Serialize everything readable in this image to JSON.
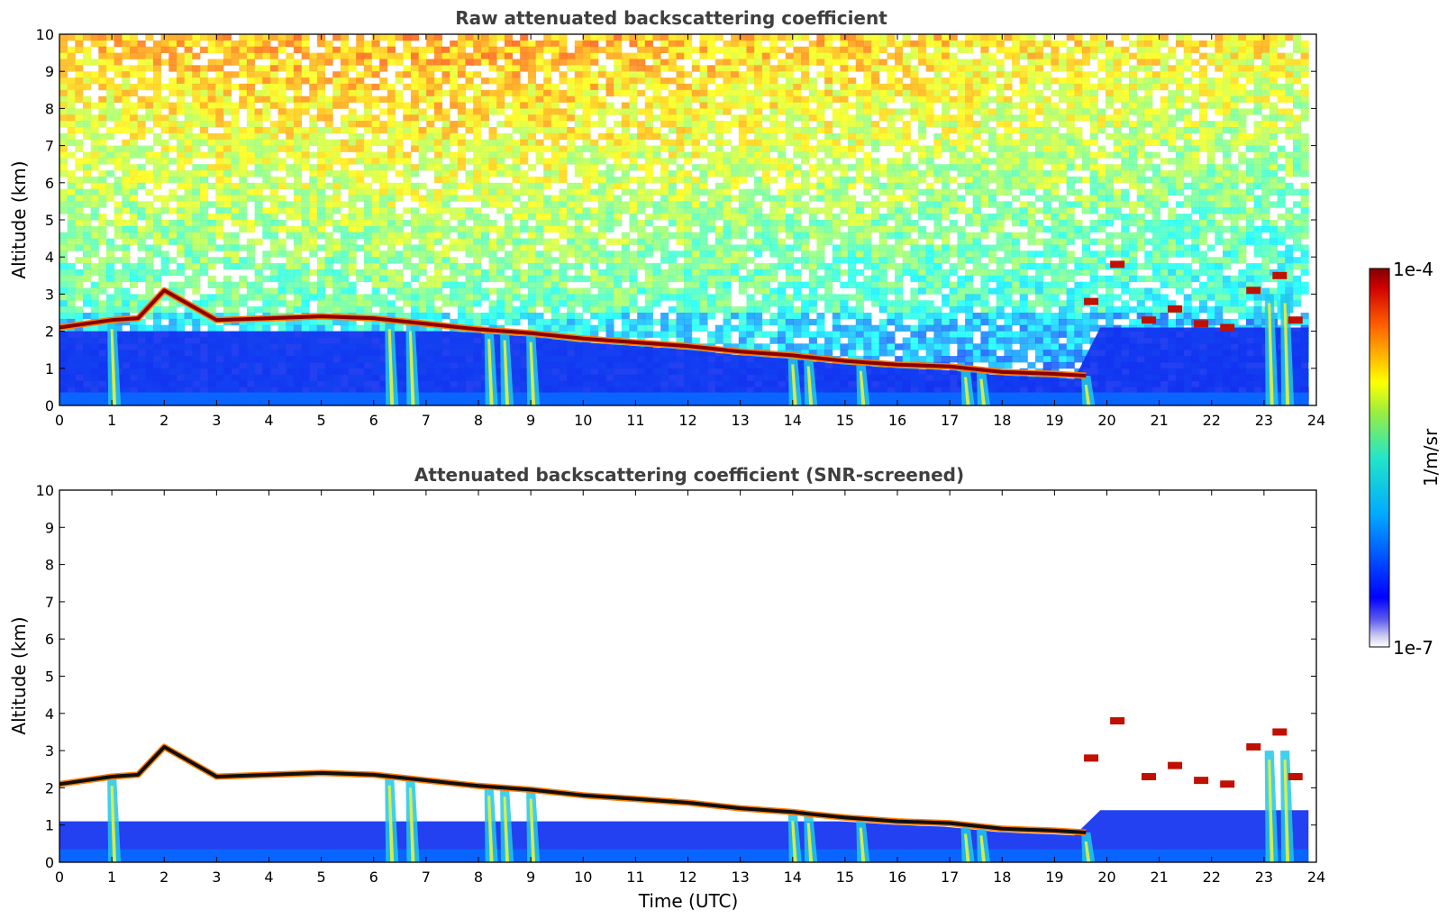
{
  "colorbar": {
    "label": "1/m/sr",
    "max_label": "1e-4",
    "min_label": "1e-7",
    "scale": "log",
    "range": [
      1e-07,
      0.0001
    ],
    "colormap": "jet"
  },
  "chart_data": [
    {
      "type": "heatmap",
      "title": "Raw attenuated backscattering coefficient",
      "xlabel": "",
      "ylabel": "Altitude (km)",
      "xlim": [
        0,
        24
      ],
      "ylim": [
        0,
        10
      ],
      "xticks": [
        "0",
        "1",
        "2",
        "3",
        "4",
        "5",
        "6",
        "7",
        "8",
        "9",
        "10",
        "11",
        "12",
        "13",
        "14",
        "15",
        "16",
        "17",
        "18",
        "19",
        "20",
        "21",
        "22",
        "23",
        "24"
      ],
      "yticks": [
        "0",
        "1",
        "2",
        "3",
        "4",
        "5",
        "6",
        "7",
        "8",
        "9",
        "10"
      ],
      "screened": false,
      "cloud_layer": {
        "x": [
          0,
          1,
          1.5,
          2,
          3,
          4,
          5,
          6,
          7,
          8,
          9,
          10,
          11,
          12,
          13,
          14,
          14.3,
          15,
          16,
          17,
          18,
          19,
          19.6
        ],
        "y": [
          2.1,
          2.3,
          2.35,
          3.1,
          2.3,
          2.35,
          2.4,
          2.35,
          2.2,
          2.05,
          1.95,
          1.8,
          1.7,
          1.6,
          1.45,
          1.35,
          1.3,
          1.2,
          1.1,
          1.05,
          0.9,
          0.85,
          0.8
        ]
      },
      "precip_columns": [
        1.0,
        6.3,
        6.7,
        8.2,
        8.5,
        9.0,
        14.0,
        14.3,
        15.3,
        17.3,
        17.6,
        19.6,
        23.1,
        23.4
      ],
      "noise_top_level": "high"
    },
    {
      "type": "heatmap",
      "title": "Attenuated backscattering coefficient (SNR-screened)",
      "xlabel": "Time (UTC)",
      "ylabel": "Altitude (km)",
      "xlim": [
        0,
        24
      ],
      "ylim": [
        0,
        10
      ],
      "xticks": [
        "0",
        "1",
        "2",
        "3",
        "4",
        "5",
        "6",
        "7",
        "8",
        "9",
        "10",
        "11",
        "12",
        "13",
        "14",
        "15",
        "16",
        "17",
        "18",
        "19",
        "20",
        "21",
        "22",
        "23",
        "24"
      ],
      "yticks": [
        "0",
        "1",
        "2",
        "3",
        "4",
        "5",
        "6",
        "7",
        "8",
        "9",
        "10"
      ],
      "screened": true,
      "cloud_layer": {
        "x": [
          0,
          1,
          1.5,
          2,
          3,
          4,
          5,
          6,
          7,
          8,
          9,
          10,
          11,
          12,
          13,
          14,
          14.3,
          15,
          16,
          17,
          18,
          19,
          19.6
        ],
        "y": [
          2.1,
          2.3,
          2.35,
          3.1,
          2.3,
          2.35,
          2.4,
          2.35,
          2.2,
          2.05,
          1.95,
          1.8,
          1.7,
          1.6,
          1.45,
          1.35,
          1.3,
          1.2,
          1.1,
          1.05,
          0.9,
          0.85,
          0.8
        ]
      },
      "precip_columns": [
        1.0,
        6.3,
        6.7,
        8.2,
        8.5,
        9.0,
        14.0,
        14.3,
        15.3,
        17.3,
        17.6,
        19.6,
        23.1,
        23.4
      ],
      "noise_top_level": "none"
    }
  ]
}
